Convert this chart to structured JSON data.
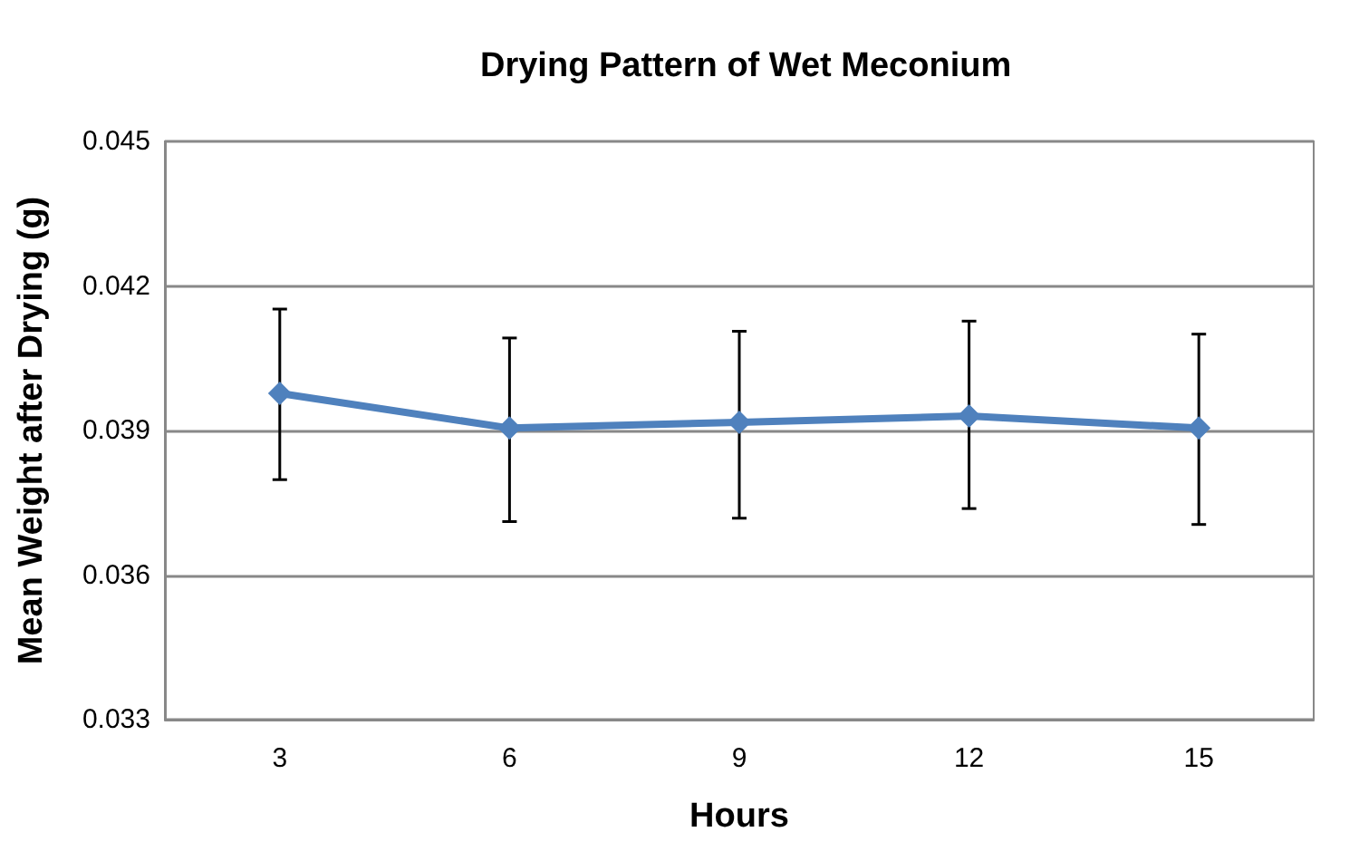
{
  "chart_data": {
    "type": "line",
    "title": "Drying Pattern of Wet Meconium",
    "xlabel": "Hours",
    "ylabel": "Mean Weight after Drying (g)",
    "categories": [
      "3",
      "6",
      "9",
      "12",
      "15"
    ],
    "series": [
      {
        "color": "#4f81bd",
        "values": [
          0.03977,
          0.03905,
          0.03917,
          0.0393,
          0.03905
        ],
        "errors": [
          [
            0.03798,
            0.04152
          ],
          [
            0.03711,
            0.04092
          ],
          [
            0.03718,
            0.04106
          ],
          [
            0.03738,
            0.04127
          ],
          [
            0.03705,
            0.041
          ]
        ]
      }
    ],
    "ylim": [
      0.033,
      0.045
    ],
    "yticks": [
      0.033,
      0.036,
      0.039,
      0.042,
      0.045
    ],
    "grid": "y",
    "marker": "diamond",
    "line_style": "solid"
  }
}
